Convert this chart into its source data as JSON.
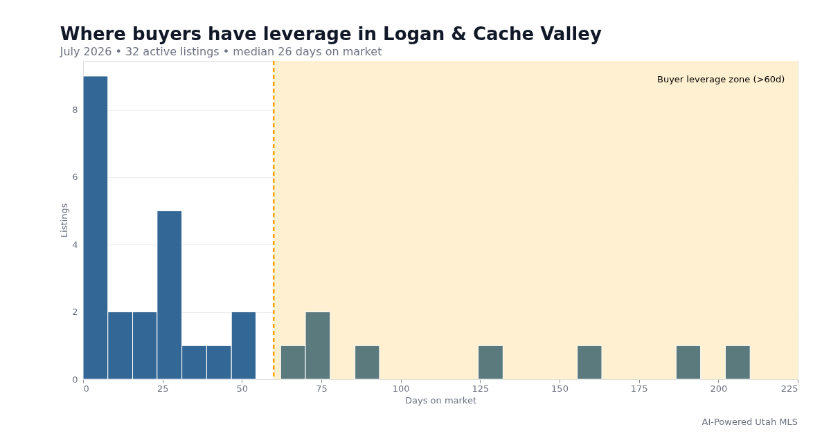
{
  "chart_data": {
    "type": "histogram",
    "title": "Where buyers have leverage in Logan & Cache Valley",
    "subtitle": "July 2026 • 32 active listings • median 26 days on market",
    "xlabel": "Days on market",
    "ylabel": "Listings",
    "bins": [
      0,
      7.8,
      15.6,
      23.3,
      31.1,
      38.9,
      46.7,
      54.4,
      62.2,
      70,
      77.8,
      85.6,
      93.3,
      101.1,
      108.9,
      116.7,
      124.4,
      132.2,
      140,
      147.8,
      155.6,
      163.3,
      171.1,
      178.9,
      186.7,
      194.4,
      202.2,
      210
    ],
    "values": [
      9,
      2,
      2,
      5,
      1,
      1,
      2,
      0,
      1,
      2,
      0,
      1,
      0,
      0,
      0,
      0,
      1,
      0,
      0,
      0,
      1,
      0,
      0,
      0,
      1,
      0,
      1
    ],
    "colors": [
      "#336896",
      "#336896",
      "#336896",
      "#336896",
      "#336896",
      "#336896",
      "#336896",
      "#336896",
      "#5b7a7e",
      "#5b7a7e",
      "#5b7a7e",
      "#5b7a7e",
      "#5b7a7e",
      "#5b7a7e",
      "#5b7a7e",
      "#5b7a7e",
      "#5b7a7e",
      "#5b7a7e",
      "#5b7a7e",
      "#5b7a7e",
      "#5b7a7e",
      "#5b7a7e",
      "#5b7a7e",
      "#5b7a7e",
      "#5b7a7e",
      "#5b7a7e",
      "#5b7a7e"
    ],
    "xlim": [
      0,
      225
    ],
    "xticks": [
      0,
      25,
      50,
      75,
      100,
      125,
      150,
      175,
      200,
      225
    ],
    "ylim": [
      0,
      9.45
    ],
    "yticks": [
      0,
      2,
      4,
      6,
      8
    ],
    "ref_lines": [
      {
        "axis": "x",
        "value": 60,
        "color": "#ff9f00",
        "line_style": "dashed"
      }
    ],
    "bands": [
      {
        "axis": "x",
        "from": 60,
        "to": 225,
        "label": "Buyer leverage zone (>60d)",
        "color": "#fef0d0"
      }
    ],
    "legend": "top right",
    "grid": "y",
    "annotations": [
      "AI-Powered Utah MLS"
    ]
  }
}
